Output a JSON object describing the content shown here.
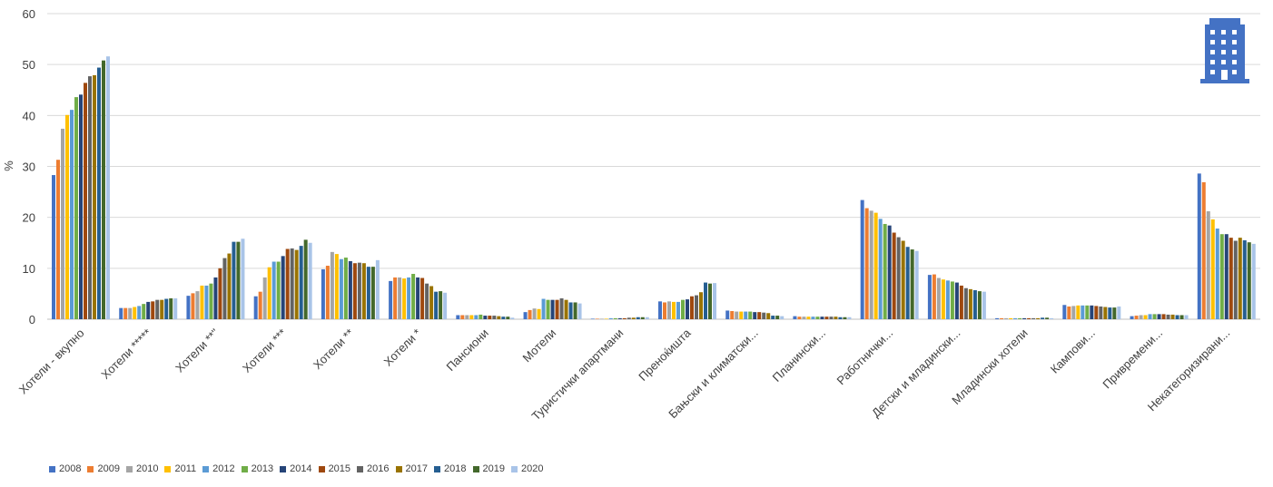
{
  "chart_data": {
    "type": "bar",
    "title": "",
    "xlabel": "",
    "ylabel": "%",
    "ylim": [
      0,
      60
    ],
    "yticks": [
      0,
      10,
      20,
      30,
      40,
      50,
      60
    ],
    "grid": true,
    "legend_position": "bottom-left",
    "icon": "building-icon",
    "icon_color": "#4472C4",
    "categories": [
      "Хотели - вкупно",
      "Хотели *****",
      "Хотели **\"",
      "Хотели ***",
      "Хотели **",
      "Хотели *",
      "Пансиони",
      "Мотели",
      "Туристички апартмани",
      "Преноќишта",
      "Бањски и климатски...",
      "Планински...",
      "Работнички...",
      "Детски и младински...",
      "Младински хотели",
      "Кампови...",
      "Привремени...",
      "Некатегоризирани..."
    ],
    "series": [
      {
        "name": "2008",
        "color": "#4472C4",
        "values": [
          28.3,
          2.2,
          4.6,
          4.5,
          9.8,
          7.5,
          0.8,
          1.4,
          0.1,
          3.5,
          1.7,
          0.6,
          23.4,
          8.7,
          0.2,
          2.8,
          0.6,
          28.6
        ]
      },
      {
        "name": "2009",
        "color": "#ED7D31",
        "values": [
          31.3,
          2.2,
          5.1,
          5.4,
          10.5,
          8.2,
          0.8,
          1.8,
          0.1,
          3.3,
          1.6,
          0.5,
          21.8,
          8.8,
          0.2,
          2.5,
          0.7,
          26.9
        ]
      },
      {
        "name": "2010",
        "color": "#A5A5A5",
        "values": [
          37.4,
          2.2,
          5.5,
          8.2,
          13.2,
          8.2,
          0.8,
          2.1,
          0.1,
          3.5,
          1.5,
          0.5,
          21.3,
          8.1,
          0.2,
          2.6,
          0.8,
          21.2
        ]
      },
      {
        "name": "2011",
        "color": "#FFC000",
        "values": [
          40.1,
          2.4,
          6.6,
          10.2,
          12.8,
          8.0,
          0.8,
          2.0,
          0.1,
          3.4,
          1.5,
          0.5,
          20.9,
          7.8,
          0.2,
          2.7,
          0.8,
          19.6
        ]
      },
      {
        "name": "2012",
        "color": "#5B9BD5",
        "values": [
          41.1,
          2.6,
          6.6,
          11.3,
          11.8,
          8.2,
          0.8,
          4.0,
          0.2,
          3.4,
          1.5,
          0.5,
          19.7,
          7.6,
          0.2,
          2.7,
          1.0,
          17.8
        ]
      },
      {
        "name": "2013",
        "color": "#70AD47",
        "values": [
          43.6,
          3.0,
          7.0,
          11.3,
          12.1,
          8.9,
          0.9,
          3.8,
          0.2,
          3.8,
          1.5,
          0.5,
          18.7,
          7.4,
          0.2,
          2.7,
          1.0,
          16.7
        ]
      },
      {
        "name": "2014",
        "color": "#264478",
        "values": [
          44.1,
          3.4,
          8.2,
          12.4,
          11.4,
          8.2,
          0.7,
          3.8,
          0.2,
          3.9,
          1.4,
          0.5,
          18.4,
          7.2,
          0.2,
          2.7,
          1.0,
          16.7
        ]
      },
      {
        "name": "2015",
        "color": "#9E480E",
        "values": [
          46.4,
          3.5,
          10.0,
          13.8,
          11.0,
          8.1,
          0.7,
          3.8,
          0.2,
          4.5,
          1.4,
          0.5,
          17.0,
          6.6,
          0.2,
          2.6,
          1.0,
          16.0
        ]
      },
      {
        "name": "2016",
        "color": "#636363",
        "values": [
          47.7,
          3.8,
          12.0,
          13.9,
          11.1,
          7.0,
          0.7,
          4.1,
          0.3,
          4.7,
          1.3,
          0.5,
          16.1,
          6.1,
          0.2,
          2.5,
          0.9,
          15.4
        ]
      },
      {
        "name": "2017",
        "color": "#997300",
        "values": [
          47.9,
          3.8,
          12.9,
          13.6,
          11.0,
          6.5,
          0.6,
          3.8,
          0.3,
          5.3,
          1.2,
          0.5,
          15.4,
          5.9,
          0.2,
          2.4,
          0.9,
          16.0
        ]
      },
      {
        "name": "2018",
        "color": "#255E91",
        "values": [
          49.4,
          4.0,
          15.2,
          14.4,
          10.3,
          5.4,
          0.5,
          3.3,
          0.4,
          7.2,
          0.7,
          0.4,
          14.2,
          5.7,
          0.3,
          2.3,
          0.8,
          15.5
        ]
      },
      {
        "name": "2019",
        "color": "#43682B",
        "values": [
          50.8,
          4.1,
          15.2,
          15.6,
          10.3,
          5.5,
          0.5,
          3.3,
          0.4,
          7.0,
          0.7,
          0.4,
          13.7,
          5.5,
          0.3,
          2.3,
          0.8,
          15.1
        ]
      },
      {
        "name": "2020",
        "color": "#A9C4E8",
        "values": [
          51.6,
          4.1,
          15.8,
          15.0,
          11.6,
          5.2,
          0.3,
          3.1,
          0.4,
          7.1,
          0.6,
          0.4,
          13.4,
          5.4,
          0.2,
          2.5,
          0.8,
          14.8
        ]
      }
    ]
  }
}
